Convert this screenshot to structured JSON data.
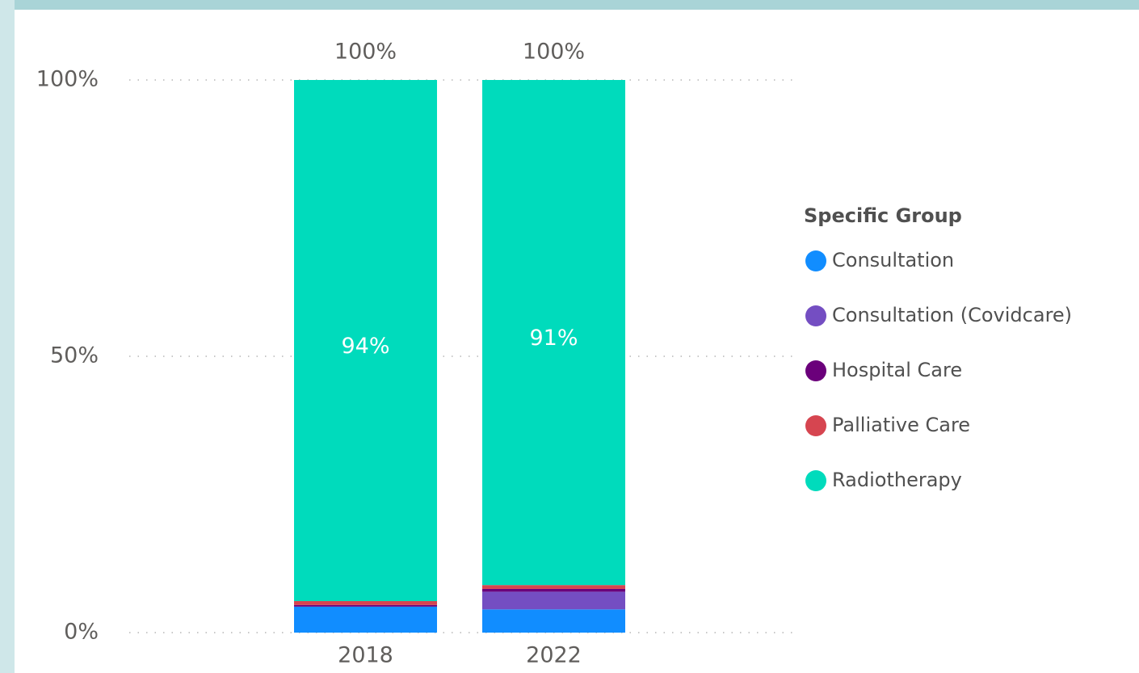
{
  "chart_data": {
    "type": "bar",
    "stacked": true,
    "categories": [
      "2018",
      "2022"
    ],
    "series": [
      {
        "name": "Consultation",
        "color": "#118dff",
        "values": [
          4.7,
          4.2
        ]
      },
      {
        "name": "Consultation (Covidcare)",
        "color": "#744ec2",
        "values": [
          0,
          3.2
        ]
      },
      {
        "name": "Hospital Care",
        "color": "#6b007b",
        "values": [
          0.3,
          0.5
        ]
      },
      {
        "name": "Palliative Care",
        "color": "#d64550",
        "values": [
          0.7,
          0.7
        ]
      },
      {
        "name": "Radiotherapy",
        "color": "#00dbbc",
        "values": [
          94.3,
          91.4
        ],
        "value_labels": [
          "94%",
          "91%"
        ]
      }
    ],
    "totals": [
      100,
      100
    ],
    "total_labels": [
      "100%",
      "100%"
    ],
    "ylim": [
      0,
      100
    ],
    "yticks": [
      {
        "value": 0,
        "label": "0%"
      },
      {
        "value": 50,
        "label": "50%"
      },
      {
        "value": 100,
        "label": "100%"
      }
    ],
    "grid": true,
    "legend_title": "Specific Group",
    "legend_position": "right"
  }
}
